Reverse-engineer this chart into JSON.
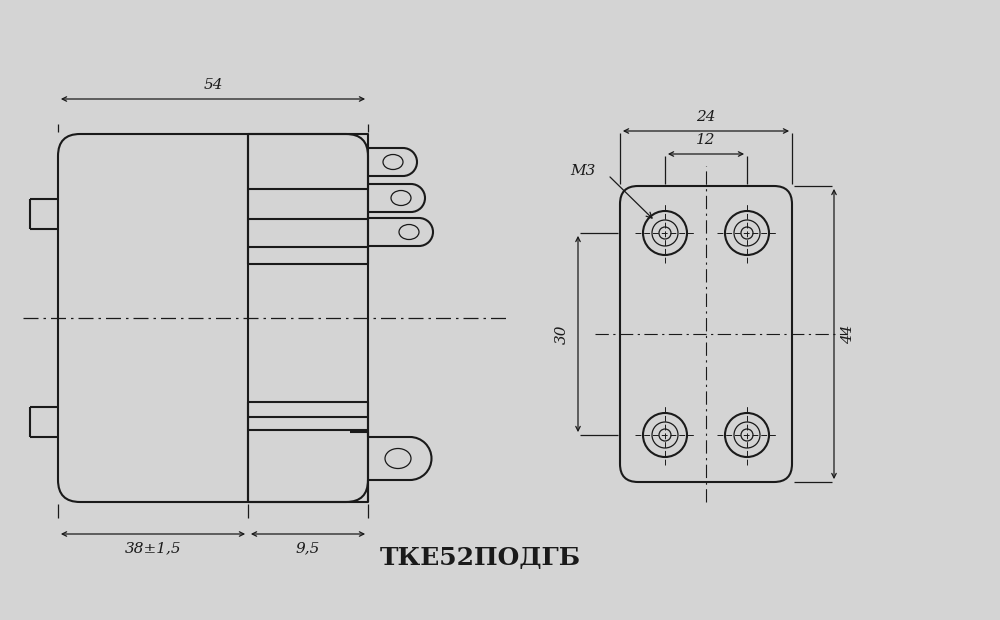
{
  "title": "ТКЕ52ПОДГБ",
  "bg_color": "#d4d4d4",
  "line_color": "#1a1a1a",
  "dim_color": "#1a1a1a",
  "title_fontsize": 18,
  "dim_fontsize": 11,
  "label_fontsize": 11
}
